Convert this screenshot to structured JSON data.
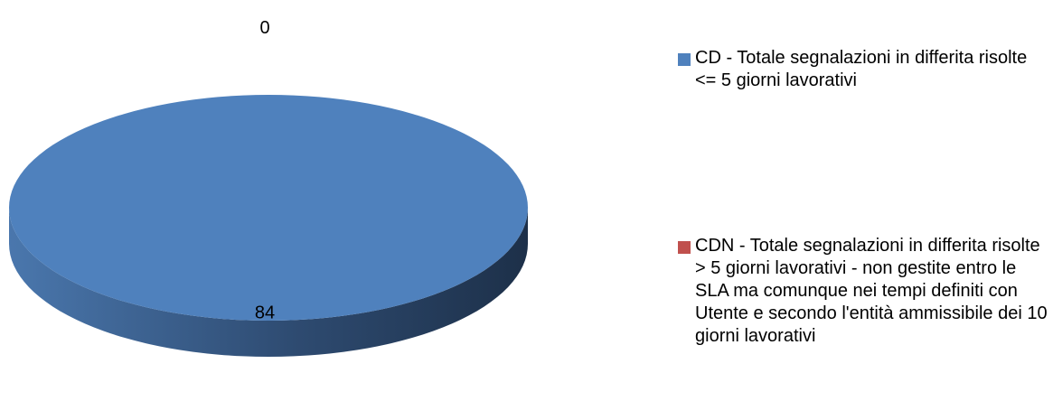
{
  "chart_data": {
    "type": "pie",
    "categories": [
      "CD - Totale  segnalazioni  in differita risolte <= 5 giorni lavorativi",
      "CDN - Totale segnalazioni  in differita risolte > 5 giorni lavorativi - non gestite entro le SLA ma comunque nei tempi definiti con Utente e secondo l'entità  ammissibile  dei 10 giorni lavorativi"
    ],
    "values": [
      84,
      0
    ],
    "data_labels": [
      "84",
      "0"
    ],
    "colors": [
      "#4F81BD",
      "#C0504D"
    ],
    "legend_position": "right",
    "style": "3d"
  }
}
